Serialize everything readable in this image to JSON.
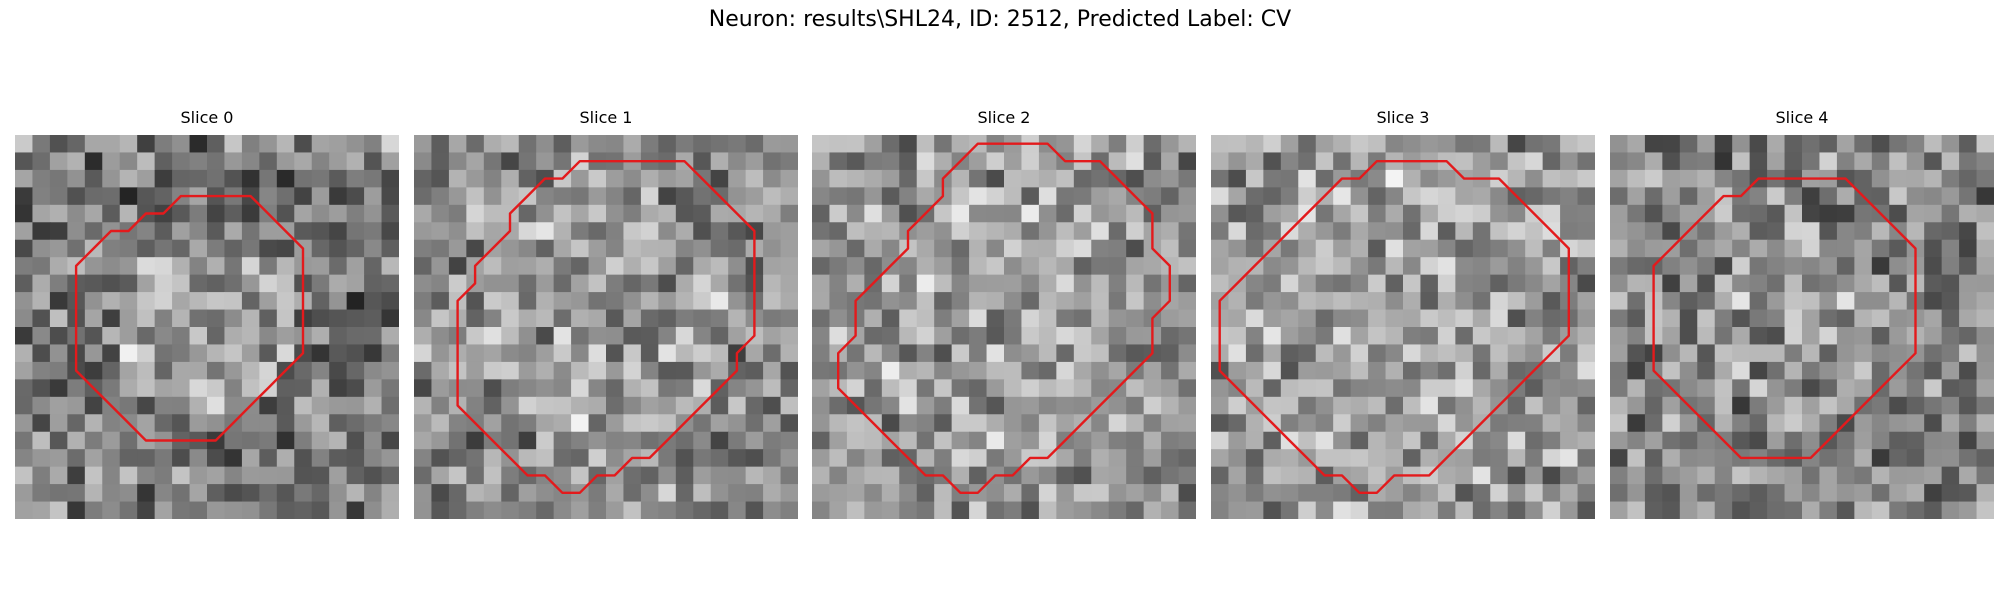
{
  "figure": {
    "title": "Neuron: results\\SHL24, ID: 2512, Predicted Label: CV"
  },
  "outline_color": "#e31a1c",
  "slices": [
    {
      "title": "Slice 0",
      "outline": [
        [
          11.5,
          3.5
        ],
        [
          13.5,
          3.5
        ],
        [
          14.5,
          4.5
        ],
        [
          15.5,
          5.5
        ],
        [
          16.5,
          6.5
        ],
        [
          16.5,
          8.5
        ],
        [
          16.5,
          10.5
        ],
        [
          16.5,
          12.5
        ],
        [
          15.5,
          13.5
        ],
        [
          14.5,
          14.5
        ],
        [
          13.5,
          15.5
        ],
        [
          12.5,
          16.5
        ],
        [
          11.5,
          17.5
        ],
        [
          9.5,
          17.5
        ],
        [
          7.5,
          17.5
        ],
        [
          6.5,
          16.5
        ],
        [
          5.5,
          15.5
        ],
        [
          4.5,
          14.5
        ],
        [
          3.5,
          13.5
        ],
        [
          3.5,
          11.5
        ],
        [
          3.5,
          9.5
        ],
        [
          3.5,
          7.5
        ],
        [
          4.5,
          6.5
        ],
        [
          5.5,
          5.5
        ],
        [
          6.5,
          5.5
        ],
        [
          7.5,
          4.5
        ],
        [
          8.5,
          4.5
        ],
        [
          9.5,
          3.5
        ]
      ]
    },
    {
      "title": "Slice 1",
      "outline": [
        [
          9.5,
          1.5
        ],
        [
          11.5,
          1.5
        ],
        [
          13.5,
          1.5
        ],
        [
          15.5,
          1.5
        ],
        [
          16.5,
          2.5
        ],
        [
          17.5,
          3.5
        ],
        [
          18.5,
          4.5
        ],
        [
          19.5,
          5.5
        ],
        [
          19.5,
          7.5
        ],
        [
          19.5,
          9.5
        ],
        [
          19.5,
          11.5
        ],
        [
          18.5,
          12.5
        ],
        [
          18.5,
          13.5
        ],
        [
          17.5,
          14.5
        ],
        [
          16.5,
          15.5
        ],
        [
          15.5,
          16.5
        ],
        [
          14.5,
          17.5
        ],
        [
          13.5,
          18.5
        ],
        [
          12.5,
          18.5
        ],
        [
          11.5,
          19.5
        ],
        [
          10.5,
          19.5
        ],
        [
          9.5,
          20.5
        ],
        [
          8.5,
          20.5
        ],
        [
          7.5,
          19.5
        ],
        [
          6.5,
          19.5
        ],
        [
          5.5,
          18.5
        ],
        [
          4.5,
          17.5
        ],
        [
          3.5,
          16.5
        ],
        [
          2.5,
          15.5
        ],
        [
          2.5,
          13.5
        ],
        [
          2.5,
          11.5
        ],
        [
          2.5,
          9.5
        ],
        [
          3.5,
          8.5
        ],
        [
          3.5,
          7.5
        ],
        [
          4.5,
          6.5
        ],
        [
          5.5,
          5.5
        ],
        [
          5.5,
          4.5
        ],
        [
          6.5,
          3.5
        ],
        [
          7.5,
          2.5
        ],
        [
          8.5,
          2.5
        ]
      ]
    },
    {
      "title": "Slice 2",
      "outline": [
        [
          9.5,
          0.5
        ],
        [
          11.5,
          0.5
        ],
        [
          13.5,
          0.5
        ],
        [
          14.5,
          1.5
        ],
        [
          16.5,
          1.5
        ],
        [
          17.5,
          2.5
        ],
        [
          18.5,
          3.5
        ],
        [
          19.5,
          4.5
        ],
        [
          19.5,
          6.5
        ],
        [
          20.5,
          7.5
        ],
        [
          20.5,
          9.5
        ],
        [
          19.5,
          10.5
        ],
        [
          19.5,
          12.5
        ],
        [
          18.5,
          13.5
        ],
        [
          17.5,
          14.5
        ],
        [
          16.5,
          15.5
        ],
        [
          15.5,
          16.5
        ],
        [
          14.5,
          17.5
        ],
        [
          13.5,
          18.5
        ],
        [
          12.5,
          18.5
        ],
        [
          11.5,
          19.5
        ],
        [
          10.5,
          19.5
        ],
        [
          9.5,
          20.5
        ],
        [
          8.5,
          20.5
        ],
        [
          7.5,
          19.5
        ],
        [
          6.5,
          19.5
        ],
        [
          5.5,
          18.5
        ],
        [
          4.5,
          17.5
        ],
        [
          3.5,
          16.5
        ],
        [
          2.5,
          15.5
        ],
        [
          1.5,
          14.5
        ],
        [
          1.5,
          12.5
        ],
        [
          2.5,
          11.5
        ],
        [
          2.5,
          9.5
        ],
        [
          3.5,
          8.5
        ],
        [
          4.5,
          7.5
        ],
        [
          5.5,
          6.5
        ],
        [
          5.5,
          5.5
        ],
        [
          6.5,
          4.5
        ],
        [
          7.5,
          3.5
        ],
        [
          7.5,
          2.5
        ],
        [
          8.5,
          1.5
        ]
      ]
    },
    {
      "title": "Slice 3",
      "outline": [
        [
          10.5,
          1.5
        ],
        [
          12.5,
          1.5
        ],
        [
          13.5,
          1.5
        ],
        [
          14.5,
          2.5
        ],
        [
          16.5,
          2.5
        ],
        [
          17.5,
          3.5
        ],
        [
          18.5,
          4.5
        ],
        [
          19.5,
          5.5
        ],
        [
          20.5,
          6.5
        ],
        [
          20.5,
          7.5
        ],
        [
          20.5,
          9.5
        ],
        [
          20.5,
          11.5
        ],
        [
          19.5,
          12.5
        ],
        [
          18.5,
          13.5
        ],
        [
          17.5,
          14.5
        ],
        [
          16.5,
          15.5
        ],
        [
          15.5,
          16.5
        ],
        [
          14.5,
          17.5
        ],
        [
          13.5,
          18.5
        ],
        [
          12.5,
          19.5
        ],
        [
          11.5,
          19.5
        ],
        [
          10.5,
          19.5
        ],
        [
          9.5,
          20.5
        ],
        [
          8.5,
          20.5
        ],
        [
          7.5,
          19.5
        ],
        [
          6.5,
          19.5
        ],
        [
          5.5,
          18.5
        ],
        [
          4.5,
          17.5
        ],
        [
          3.5,
          16.5
        ],
        [
          2.5,
          15.5
        ],
        [
          1.5,
          14.5
        ],
        [
          0.5,
          13.5
        ],
        [
          0.5,
          11.5
        ],
        [
          0.5,
          9.5
        ],
        [
          1.5,
          8.5
        ],
        [
          2.5,
          7.5
        ],
        [
          3.5,
          6.5
        ],
        [
          4.5,
          5.5
        ],
        [
          5.5,
          4.5
        ],
        [
          6.5,
          3.5
        ],
        [
          7.5,
          2.5
        ],
        [
          8.5,
          2.5
        ],
        [
          9.5,
          1.5
        ]
      ]
    },
    {
      "title": "Slice 4",
      "outline": [
        [
          9.5,
          2.5
        ],
        [
          11.5,
          2.5
        ],
        [
          13.5,
          2.5
        ],
        [
          14.5,
          3.5
        ],
        [
          15.5,
          4.5
        ],
        [
          16.5,
          5.5
        ],
        [
          17.5,
          6.5
        ],
        [
          17.5,
          8.5
        ],
        [
          17.5,
          10.5
        ],
        [
          17.5,
          12.5
        ],
        [
          16.5,
          13.5
        ],
        [
          15.5,
          14.5
        ],
        [
          14.5,
          15.5
        ],
        [
          13.5,
          16.5
        ],
        [
          12.5,
          17.5
        ],
        [
          11.5,
          18.5
        ],
        [
          9.5,
          18.5
        ],
        [
          7.5,
          18.5
        ],
        [
          6.5,
          17.5
        ],
        [
          5.5,
          16.5
        ],
        [
          4.5,
          15.5
        ],
        [
          3.5,
          14.5
        ],
        [
          2.5,
          13.5
        ],
        [
          2.5,
          11.5
        ],
        [
          2.5,
          9.5
        ],
        [
          2.5,
          7.5
        ],
        [
          3.5,
          6.5
        ],
        [
          4.5,
          5.5
        ],
        [
          5.5,
          4.5
        ],
        [
          6.5,
          3.5
        ],
        [
          7.5,
          3.5
        ],
        [
          8.5,
          2.5
        ]
      ]
    }
  ]
}
